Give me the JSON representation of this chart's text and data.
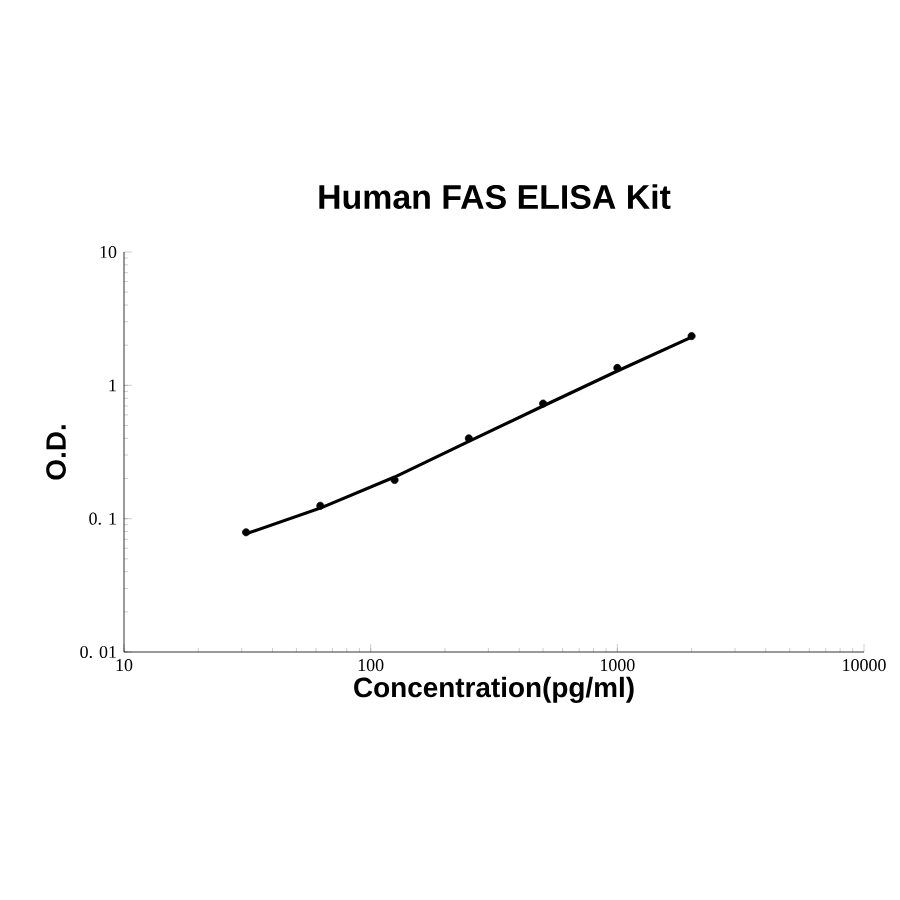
{
  "chart_data": {
    "type": "scatter",
    "title": "Human FAS ELISA Kit",
    "xlabel": "Concentration(pg/ml)",
    "ylabel": "O.D.",
    "log": "xy",
    "xlim": [
      10,
      10000
    ],
    "ylim": [
      0.01,
      10
    ],
    "xticks": [
      10,
      100,
      1000,
      10000
    ],
    "yticks": [
      {
        "value": 0.01,
        "label": "0. 01"
      },
      {
        "value": 0.1,
        "label": "0. 1"
      },
      1,
      10
    ],
    "series": [
      {
        "marker": "circle",
        "color": "#000000",
        "x": [
          31.25,
          62.5,
          125,
          250,
          500,
          1000,
          2000
        ],
        "values": [
          0.079,
          0.125,
          0.195,
          0.4,
          0.73,
          1.35,
          2.34
        ]
      },
      {
        "type": "line",
        "marker": "none",
        "color": "#000000",
        "x": [
          31.25,
          62.5,
          125,
          250,
          500,
          1000,
          2000
        ],
        "values": [
          0.077,
          0.12,
          0.205,
          0.38,
          0.7,
          1.28,
          2.3
        ]
      }
    ]
  }
}
